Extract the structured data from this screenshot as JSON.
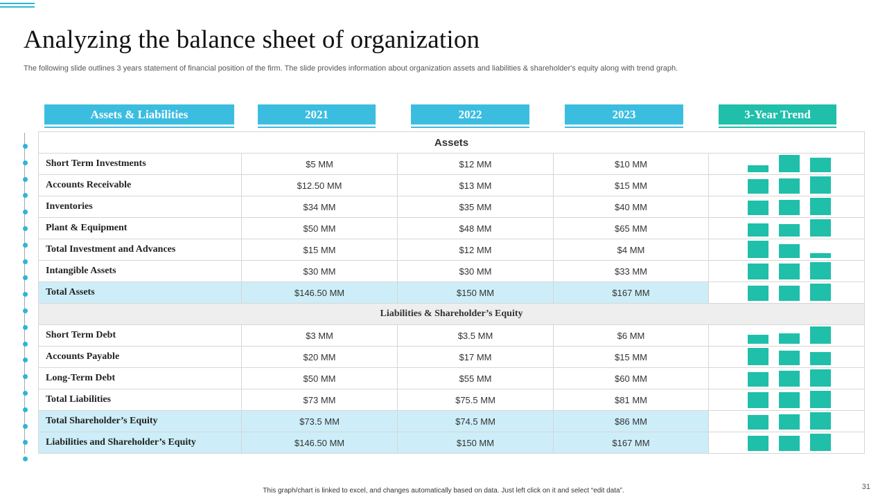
{
  "title": "Analyzing  the balance  sheet  of  organization",
  "subtitle": "The following slide outlines 3 years statement of financial position of the firm. The slide provides information about organization assets and liabilities & shareholder's equity along with trend graph.",
  "headers": {
    "label": "Assets & Liabilities",
    "y2021": "2021",
    "y2022": "2022",
    "y2023": "2023",
    "trend": "3-Year Trend"
  },
  "colors": {
    "accent": "#3bbde0",
    "trend": "#1fbfaa",
    "highlight": "#cdeef8"
  },
  "sections": {
    "assets": "Assets",
    "liabilities": "Liabilities  &  Shareholder’s  Equity"
  },
  "rows": [
    {
      "label": "Short Term Investments",
      "v2021": "$5 MM",
      "v2022": "$12 MM",
      "v2023": "$10 MM",
      "nums": [
        5,
        12,
        10
      ]
    },
    {
      "label": "Accounts Receivable",
      "v2021": "$12.50 MM",
      "v2022": "$13 MM",
      "v2023": "$15 MM",
      "nums": [
        12.5,
        13,
        15
      ]
    },
    {
      "label": "Inventories",
      "v2021": "$34 MM",
      "v2022": "$35 MM",
      "v2023": "$40 MM",
      "nums": [
        34,
        35,
        40
      ]
    },
    {
      "label": "Plant & Equipment",
      "v2021": "$50 MM",
      "v2022": "$48 MM",
      "v2023": "$65 MM",
      "nums": [
        50,
        48,
        65
      ]
    },
    {
      "label": "Total Investment and Advances",
      "v2021": "$15 MM",
      "v2022": "$12 MM",
      "v2023": "$4 MM",
      "nums": [
        15,
        12,
        4
      ]
    },
    {
      "label": "Intangible Assets",
      "v2021": "$30 MM",
      "v2022": "$30 MM",
      "v2023": "$33 MM",
      "nums": [
        30,
        30,
        33
      ]
    },
    {
      "label": "Total Assets",
      "v2021": "$146.50 MM",
      "v2022": "$150 MM",
      "v2023": "$167 MM",
      "nums": [
        146.5,
        150,
        167
      ]
    },
    {
      "label": "Short Term Debt",
      "v2021": "$3 MM",
      "v2022": "$3.5 MM",
      "v2023": "$6 MM",
      "nums": [
        3,
        3.5,
        6
      ]
    },
    {
      "label": "Accounts Payable",
      "v2021": "$20 MM",
      "v2022": "$17 MM",
      "v2023": "$15 MM",
      "nums": [
        20,
        17,
        15
      ]
    },
    {
      "label": "Long-Term Debt",
      "v2021": "$50 MM",
      "v2022": "$55 MM",
      "v2023": "$60 MM",
      "nums": [
        50,
        55,
        60
      ]
    },
    {
      "label": "Total Liabilities",
      "v2021": "$73 MM",
      "v2022": "$75.5 MM",
      "v2023": "$81 MM",
      "nums": [
        73,
        75.5,
        81
      ]
    },
    {
      "label": "Total Shareholder’s Equity",
      "v2021": "$73.5 MM",
      "v2022": "$74.5 MM",
      "v2023": "$86 MM",
      "nums": [
        73.5,
        74.5,
        86
      ]
    },
    {
      "label": "Liabilities and Shareholder’s Equity",
      "v2021": "$146.50 MM",
      "v2022": "$150 MM",
      "v2023": "$167 MM",
      "nums": [
        146.5,
        150,
        167
      ]
    }
  ],
  "footer": "This graph/chart is linked to excel, and changes automatically based on data. Just left click on it and select “edit data”.",
  "page_number": "31"
}
